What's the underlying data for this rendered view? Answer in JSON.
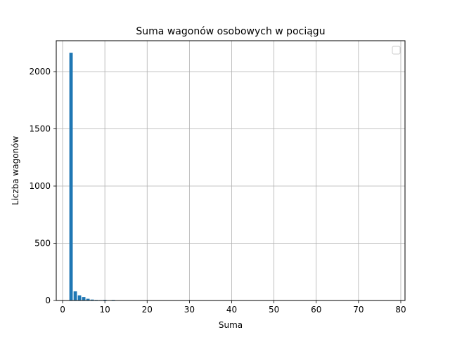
{
  "chart_data": {
    "type": "bar",
    "title": "Suma wagonów osobowych w pociągu",
    "xlabel": "Suma",
    "ylabel": "Liczba wagonów",
    "xlim": [
      -1.5,
      81
    ],
    "ylim": [
      0,
      2270
    ],
    "xticks": [
      0,
      10,
      20,
      30,
      40,
      50,
      60,
      70,
      80
    ],
    "yticks": [
      0,
      500,
      1000,
      1500,
      2000
    ],
    "grid": true,
    "legend": {
      "placement": "top-right",
      "entries": []
    },
    "bar_color": "#1f77b4",
    "bars": [
      {
        "x": 2,
        "value": 2165
      },
      {
        "x": 3,
        "value": 80
      },
      {
        "x": 4,
        "value": 45
      },
      {
        "x": 5,
        "value": 30
      },
      {
        "x": 6,
        "value": 15
      },
      {
        "x": 7,
        "value": 8
      },
      {
        "x": 8,
        "value": 5
      },
      {
        "x": 9,
        "value": 4
      },
      {
        "x": 10,
        "value": 6
      },
      {
        "x": 11,
        "value": 3
      },
      {
        "x": 12,
        "value": 5
      },
      {
        "x": 13,
        "value": 2
      },
      {
        "x": 14,
        "value": 1
      },
      {
        "x": 15,
        "value": 1
      },
      {
        "x": 16,
        "value": 1
      }
    ]
  }
}
